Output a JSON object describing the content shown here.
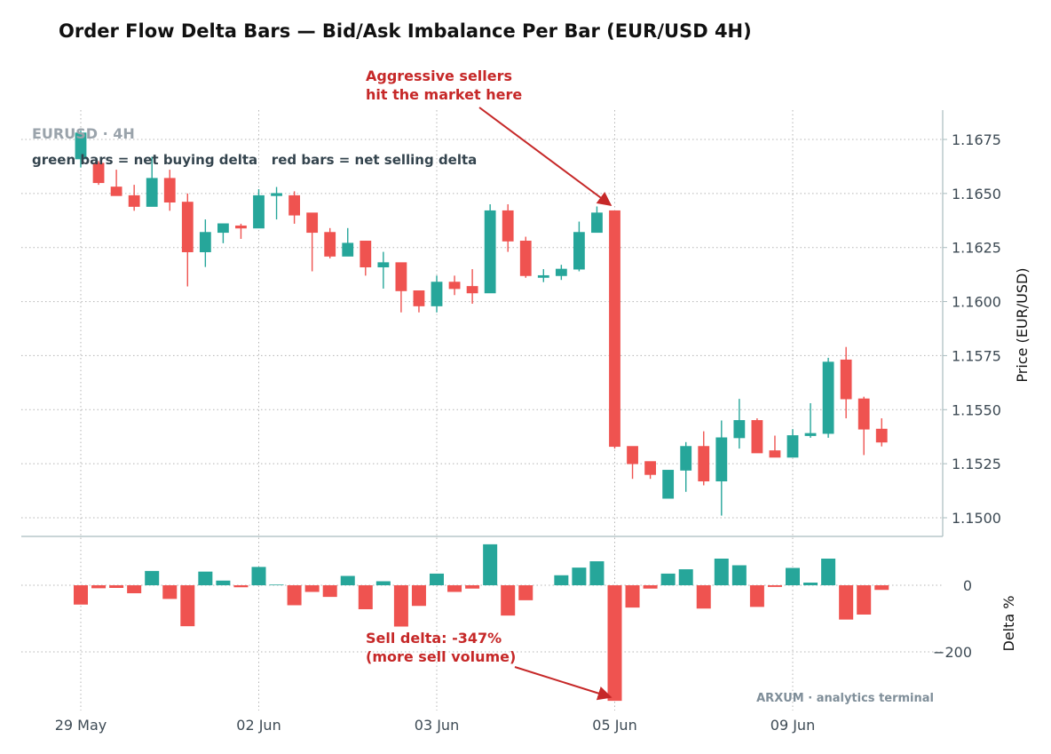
{
  "chart_data": {
    "type": "candlestick",
    "title": "Order Flow Delta Bars — Bid/Ask Imbalance Per Bar (EUR/USD 4H)",
    "symbol_label": "EURUSD · 4H",
    "legend_text": "green bars = net buying delta   red bars = net selling delta",
    "watermark": "ARXUM · analytics terminal",
    "colors": {
      "up": "#26a69a",
      "down": "#ef5350",
      "annotation": "#c62828"
    },
    "price_panel": {
      "ylabel": "Price (EUR/USD)",
      "ylim": [
        1.1495,
        1.1685
      ],
      "yticks": [
        "1.1500",
        "1.1525",
        "1.1550",
        "1.1575",
        "1.1600",
        "1.1625",
        "1.1650",
        "1.1675"
      ],
      "grid": true
    },
    "delta_panel": {
      "ylabel": "Delta %",
      "ylim": [
        -380,
        120
      ],
      "yticks": [
        0,
        -200
      ],
      "grid": true
    },
    "x_tick_labels": [
      {
        "bar": 0,
        "label": "29 May"
      },
      {
        "bar": 10,
        "label": "02 Jun"
      },
      {
        "bar": 20,
        "label": "03 Jun"
      },
      {
        "bar": 30,
        "label": "05 Jun"
      },
      {
        "bar": 40,
        "label": "09 Jun"
      }
    ],
    "bars": [
      {
        "o": 1.1666,
        "h": 1.1679,
        "l": 1.1662,
        "c": 1.1678,
        "delta": -58
      },
      {
        "o": 1.1664,
        "h": 1.1665,
        "l": 1.1654,
        "c": 1.1655,
        "delta": -9
      },
      {
        "o": 1.1653,
        "h": 1.1661,
        "l": 1.1649,
        "c": 1.1649,
        "delta": -8
      },
      {
        "o": 1.1649,
        "h": 1.1654,
        "l": 1.1642,
        "c": 1.1644,
        "delta": -24
      },
      {
        "o": 1.1644,
        "h": 1.1667,
        "l": 1.1644,
        "c": 1.1657,
        "delta": 43
      },
      {
        "o": 1.1657,
        "h": 1.1661,
        "l": 1.1642,
        "c": 1.1646,
        "delta": -41
      },
      {
        "o": 1.1646,
        "h": 1.165,
        "l": 1.1607,
        "c": 1.1623,
        "delta": -123
      },
      {
        "o": 1.1623,
        "h": 1.1638,
        "l": 1.1616,
        "c": 1.1632,
        "delta": 41
      },
      {
        "o": 1.1632,
        "h": 1.1636,
        "l": 1.1627,
        "c": 1.1636,
        "delta": 14
      },
      {
        "o": 1.1635,
        "h": 1.1636,
        "l": 1.1629,
        "c": 1.1634,
        "delta": -6
      },
      {
        "o": 1.1634,
        "h": 1.1652,
        "l": 1.1634,
        "c": 1.1649,
        "delta": 55
      },
      {
        "o": 1.1649,
        "h": 1.1653,
        "l": 1.1638,
        "c": 1.165,
        "delta": 2
      },
      {
        "o": 1.1649,
        "h": 1.1651,
        "l": 1.1636,
        "c": 1.164,
        "delta": -60
      },
      {
        "o": 1.1641,
        "h": 1.1641,
        "l": 1.1614,
        "c": 1.1632,
        "delta": -20
      },
      {
        "o": 1.1632,
        "h": 1.1634,
        "l": 1.162,
        "c": 1.1621,
        "delta": -35
      },
      {
        "o": 1.1621,
        "h": 1.1634,
        "l": 1.1621,
        "c": 1.1627,
        "delta": 28
      },
      {
        "o": 1.1628,
        "h": 1.1628,
        "l": 1.1612,
        "c": 1.1616,
        "delta": -72
      },
      {
        "o": 1.1616,
        "h": 1.1623,
        "l": 1.1606,
        "c": 1.1618,
        "delta": 12
      },
      {
        "o": 1.1618,
        "h": 1.1618,
        "l": 1.1595,
        "c": 1.1605,
        "delta": -124
      },
      {
        "o": 1.1605,
        "h": 1.1605,
        "l": 1.1595,
        "c": 1.1598,
        "delta": -62
      },
      {
        "o": 1.1598,
        "h": 1.1612,
        "l": 1.1595,
        "c": 1.1609,
        "delta": 35
      },
      {
        "o": 1.1609,
        "h": 1.1612,
        "l": 1.1603,
        "c": 1.1606,
        "delta": -20
      },
      {
        "o": 1.1607,
        "h": 1.1615,
        "l": 1.1599,
        "c": 1.1604,
        "delta": -10
      },
      {
        "o": 1.1604,
        "h": 1.1645,
        "l": 1.1604,
        "c": 1.1642,
        "delta": 123
      },
      {
        "o": 1.1642,
        "h": 1.1645,
        "l": 1.1623,
        "c": 1.1628,
        "delta": -91
      },
      {
        "o": 1.1628,
        "h": 1.163,
        "l": 1.1611,
        "c": 1.1612,
        "delta": -45
      },
      {
        "o": 1.1612,
        "h": 1.1615,
        "l": 1.1609,
        "c": 1.1612,
        "delta": 0
      },
      {
        "o": 1.1612,
        "h": 1.1617,
        "l": 1.161,
        "c": 1.1615,
        "delta": 30
      },
      {
        "o": 1.1615,
        "h": 1.1637,
        "l": 1.1614,
        "c": 1.1632,
        "delta": 53
      },
      {
        "o": 1.1632,
        "h": 1.1644,
        "l": 1.1632,
        "c": 1.1641,
        "delta": 72
      },
      {
        "o": 1.1642,
        "h": 1.1642,
        "l": 1.1532,
        "c": 1.1533,
        "delta": -347
      },
      {
        "o": 1.1533,
        "h": 1.1533,
        "l": 1.1518,
        "c": 1.1525,
        "delta": -67
      },
      {
        "o": 1.1526,
        "h": 1.1526,
        "l": 1.1518,
        "c": 1.152,
        "delta": -10
      },
      {
        "o": 1.1509,
        "h": 1.1522,
        "l": 1.1509,
        "c": 1.1522,
        "delta": 35
      },
      {
        "o": 1.1522,
        "h": 1.1535,
        "l": 1.1512,
        "c": 1.1533,
        "delta": 48
      },
      {
        "o": 1.1533,
        "h": 1.154,
        "l": 1.1515,
        "c": 1.1517,
        "delta": -70
      },
      {
        "o": 1.1517,
        "h": 1.1545,
        "l": 1.1501,
        "c": 1.1537,
        "delta": 80
      },
      {
        "o": 1.1537,
        "h": 1.1555,
        "l": 1.1532,
        "c": 1.1545,
        "delta": 60
      },
      {
        "o": 1.1545,
        "h": 1.1546,
        "l": 1.153,
        "c": 1.153,
        "delta": -65
      },
      {
        "o": 1.1531,
        "h": 1.1538,
        "l": 1.1528,
        "c": 1.1528,
        "delta": -5
      },
      {
        "o": 1.1528,
        "h": 1.1541,
        "l": 1.1528,
        "c": 1.1538,
        "delta": 52
      },
      {
        "o": 1.1538,
        "h": 1.1553,
        "l": 1.1537,
        "c": 1.1539,
        "delta": 8
      },
      {
        "o": 1.1539,
        "h": 1.1574,
        "l": 1.1537,
        "c": 1.1572,
        "delta": 80
      },
      {
        "o": 1.1573,
        "h": 1.1579,
        "l": 1.1546,
        "c": 1.1555,
        "delta": -103
      },
      {
        "o": 1.1555,
        "h": 1.1556,
        "l": 1.1529,
        "c": 1.1541,
        "delta": -88
      },
      {
        "o": 1.1541,
        "h": 1.1546,
        "l": 1.1533,
        "c": 1.1535,
        "delta": -14
      }
    ],
    "annotations": [
      {
        "text_lines": [
          "Aggressive sellers",
          "hit the market here"
        ],
        "bar": 30,
        "target": "price-high"
      },
      {
        "text_lines": [
          "Sell delta: -347%",
          "(more sell volume)"
        ],
        "bar": 30,
        "target": "delta-low"
      }
    ]
  }
}
